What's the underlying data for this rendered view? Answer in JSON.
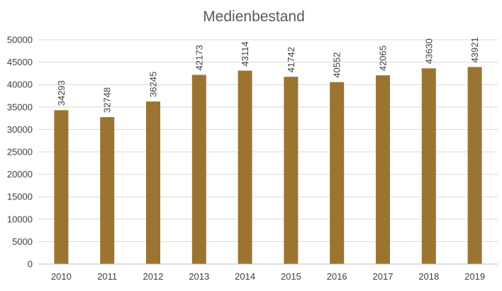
{
  "chart_data": {
    "type": "bar",
    "title": "Medienbestand",
    "xlabel": "",
    "ylabel": "",
    "categories": [
      "2010",
      "2011",
      "2012",
      "2013",
      "2014",
      "2015",
      "2016",
      "2017",
      "2018",
      "2019"
    ],
    "values": [
      34293,
      32748,
      36245,
      42173,
      43114,
      41742,
      40552,
      42065,
      43630,
      43921
    ],
    "ylim": [
      0,
      50000
    ],
    "yticks": [
      0,
      5000,
      10000,
      15000,
      20000,
      25000,
      30000,
      35000,
      40000,
      45000,
      50000
    ],
    "grid": true,
    "legend": "none",
    "bar_color": "#9c7432",
    "data_labels": "rotated-vertical"
  }
}
